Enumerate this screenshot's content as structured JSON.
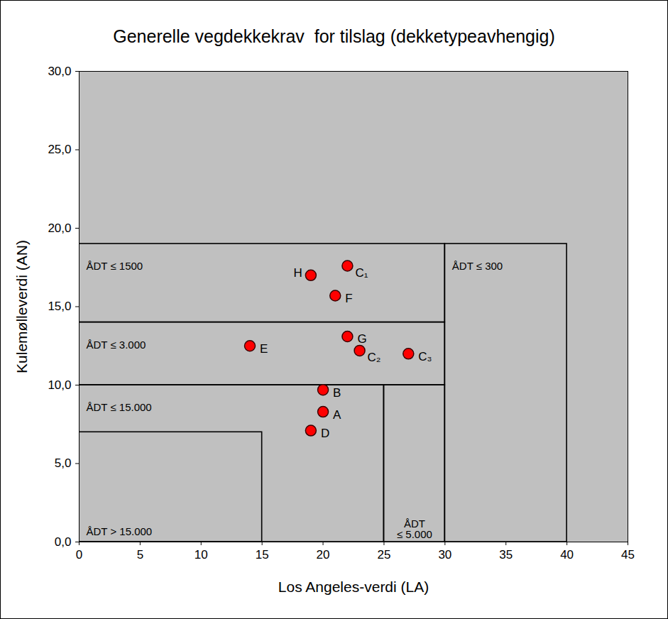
{
  "chart_data": {
    "type": "scatter",
    "title": "Generelle vegdekkekrav  for tilslag (dekketypeavhengig)",
    "x_label": "Los Angeles-verdi (LA)",
    "y_label": "Kulemølleverdi (AN)",
    "xlim": [
      0,
      45
    ],
    "xticks": [
      0,
      5,
      10,
      15,
      20,
      25,
      30,
      35,
      40,
      45
    ],
    "ylim": [
      0,
      30
    ],
    "yticks": [
      {
        "value": 0,
        "label": "0,0"
      },
      {
        "value": 5,
        "label": "5,0"
      },
      {
        "value": 10,
        "label": "10,0"
      },
      {
        "value": 15,
        "label": "15,0"
      },
      {
        "value": 20,
        "label": "20,0"
      },
      {
        "value": 25,
        "label": "25,0"
      },
      {
        "value": 30,
        "label": "30,0"
      }
    ],
    "grid": false,
    "color": "#ff0000",
    "marker": "circle",
    "labels": [
      "H",
      "C₁",
      "F",
      "G",
      "E",
      "C₂",
      "C₃",
      "B",
      "A",
      "D"
    ],
    "x": [
      19,
      22,
      21,
      22,
      14,
      23,
      27,
      20,
      20,
      19
    ],
    "y": [
      17.0,
      17.6,
      15.7,
      13.1,
      12.5,
      12.2,
      12.0,
      9.7,
      8.3,
      7.1
    ],
    "regions": [
      {
        "label": [
          "ÅDT > 15.000"
        ],
        "x": [
          0,
          15
        ],
        "y": [
          0,
          7
        ]
      },
      {
        "label": [
          "ÅDT ≤ 15.000"
        ],
        "x": [
          0,
          25
        ],
        "y": [
          0,
          10
        ]
      },
      {
        "label": [
          "ÅDT",
          "≤ 5.000"
        ],
        "x": [
          25,
          30
        ],
        "y": [
          0,
          10
        ]
      },
      {
        "label": [
          "ÅDT ≤ 3.000"
        ],
        "x": [
          0,
          30
        ],
        "y": [
          10,
          14
        ]
      },
      {
        "label": [
          "ÅDT ≤ 1500"
        ],
        "x": [
          0,
          30
        ],
        "y": [
          14,
          19
        ]
      },
      {
        "label": [
          "ÅDT ≤ 300"
        ],
        "x": [
          30,
          40
        ],
        "y": [
          0,
          19
        ]
      }
    ]
  }
}
